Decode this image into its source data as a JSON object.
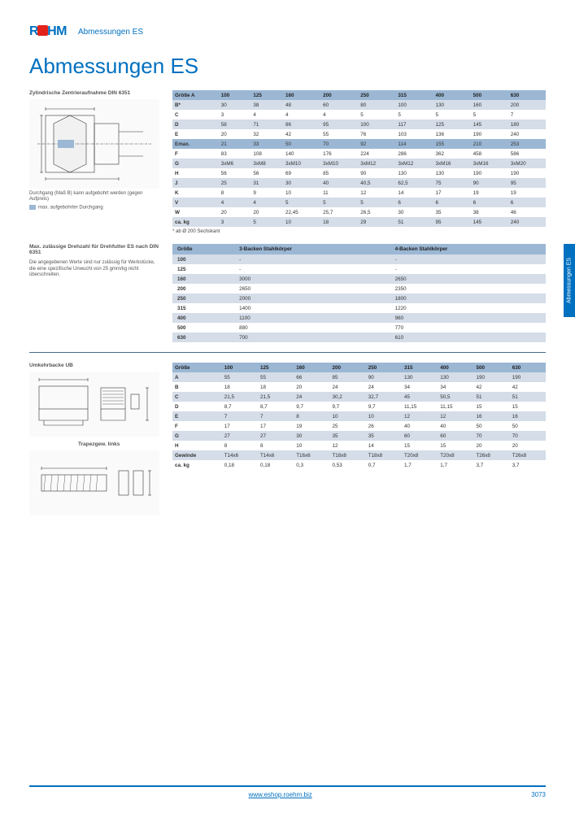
{
  "header": {
    "logo_text": "RÖHM",
    "breadcrumb": "Abmessungen ES"
  },
  "title": "Abmessungen ES",
  "side_tab": "Abmessungen ES",
  "section1": {
    "diagram_title": "Zylindrische Zentrieraufnahme DIN 6351",
    "caption1": "Durchgang (Maß B) kann aufgebohrt werden (gegen Aufpreis)",
    "caption2": "max. aufgebohrter Durchgang",
    "footnote": "* ab Ø 200 Sechskant"
  },
  "table1": {
    "header": [
      "Größe A",
      "100",
      "125",
      "160",
      "200",
      "250",
      "315",
      "400",
      "500",
      "630"
    ],
    "rows": [
      [
        "B*",
        "30",
        "38",
        "48",
        "60",
        "80",
        "100",
        "130",
        "160",
        "200"
      ],
      [
        "C",
        "3",
        "4",
        "4",
        "4",
        "5",
        "5",
        "5",
        "5",
        "7"
      ],
      [
        "D",
        "58",
        "71",
        "86",
        "95",
        "100",
        "117",
        "125",
        "145",
        "180"
      ],
      [
        "E",
        "20",
        "32",
        "42",
        "55",
        "76",
        "103",
        "136",
        "190",
        "240"
      ],
      [
        "Emax.",
        "21",
        "33",
        "50",
        "70",
        "92",
        "114",
        "155",
        "210",
        "253"
      ],
      [
        "F",
        "83",
        "108",
        "140",
        "176",
        "224",
        "286",
        "362",
        "458",
        "586"
      ],
      [
        "G",
        "3xM6",
        "3xM8",
        "3xM10",
        "3xM10",
        "3xM12",
        "3xM12",
        "3xM16",
        "3xM16",
        "3xM20"
      ],
      [
        "H",
        "56",
        "56",
        "69",
        "85",
        "90",
        "130",
        "130",
        "190",
        "190"
      ],
      [
        "J",
        "25",
        "31",
        "30",
        "40",
        "40,5",
        "62,5",
        "75",
        "90",
        "95"
      ],
      [
        "K",
        "8",
        "9",
        "10",
        "11",
        "12",
        "14",
        "17",
        "19",
        "19"
      ],
      [
        "V",
        "4",
        "4",
        "5",
        "5",
        "5",
        "6",
        "6",
        "6",
        "6"
      ],
      [
        "W",
        "20",
        "20",
        "22,45",
        "25,7",
        "26,5",
        "30",
        "35",
        "38",
        "46"
      ],
      [
        "ca. kg",
        "3",
        "5",
        "10",
        "18",
        "29",
        "51",
        "95",
        "145",
        "240"
      ]
    ],
    "highlight_rows": [
      4
    ]
  },
  "section2": {
    "subhead": "Max. zulässige Drehzahl für Dreh­futter ES nach DIN 6351",
    "text": "Die angegebenen Werte sind nur zulässig für Werkstücke, die eine spezifische Unwucht von 25 gmm/kg nicht überschreiten."
  },
  "table2": {
    "header": [
      "Größe",
      "3-Backen Stahlkörper",
      "4-Backen Stahlkörper"
    ],
    "rows": [
      [
        "100",
        "-",
        "-"
      ],
      [
        "125",
        "-",
        "-"
      ],
      [
        "160",
        "3000",
        "2650"
      ],
      [
        "200",
        "2650",
        "2350"
      ],
      [
        "250",
        "2000",
        "1800"
      ],
      [
        "315",
        "1400",
        "1220"
      ],
      [
        "400",
        "1100",
        "960"
      ],
      [
        "500",
        "880",
        "770"
      ],
      [
        "630",
        "700",
        "610"
      ]
    ]
  },
  "section3": {
    "diagram_title": "Umkehrbacke UB",
    "diagram_title2": "Trapezgew. links"
  },
  "table3": {
    "header": [
      "Größe",
      "100",
      "125",
      "160",
      "200",
      "250",
      "315",
      "400",
      "500",
      "630"
    ],
    "rows": [
      [
        "A",
        "55",
        "55",
        "66",
        "85",
        "90",
        "130",
        "130",
        "190",
        "190"
      ],
      [
        "B",
        "18",
        "18",
        "20",
        "24",
        "24",
        "34",
        "34",
        "42",
        "42"
      ],
      [
        "C",
        "21,5",
        "21,5",
        "24",
        "30,2",
        "32,7",
        "45",
        "50,5",
        "51",
        "51"
      ],
      [
        "D",
        "8,7",
        "8,7",
        "9,7",
        "9,7",
        "9,7",
        "11,15",
        "11,15",
        "15",
        "15"
      ],
      [
        "E",
        "7",
        "7",
        "8",
        "10",
        "10",
        "12",
        "12",
        "16",
        "16"
      ],
      [
        "F",
        "17",
        "17",
        "19",
        "25",
        "26",
        "40",
        "40",
        "50",
        "50"
      ],
      [
        "G",
        "27",
        "27",
        "30",
        "35",
        "35",
        "60",
        "60",
        "70",
        "70"
      ],
      [
        "H",
        "8",
        "8",
        "10",
        "12",
        "14",
        "15",
        "15",
        "20",
        "20"
      ],
      [
        "Gewinde",
        "T14x6",
        "T14x6",
        "T16x6",
        "T18x8",
        "T18x8",
        "T20x8",
        "T20x8",
        "T26x8",
        "T26x8"
      ],
      [
        "ca. kg",
        "0,18",
        "0,18",
        "0,3",
        "0,53",
        "0,7",
        "1,7",
        "1,7",
        "3,7",
        "3,7"
      ]
    ]
  },
  "footer": {
    "url": "www.eshop.roehm.biz",
    "page": "3073"
  },
  "colors": {
    "brand": "#0070c0",
    "th_bg": "#9bb7d4",
    "row_odd": "#d4dde8"
  }
}
